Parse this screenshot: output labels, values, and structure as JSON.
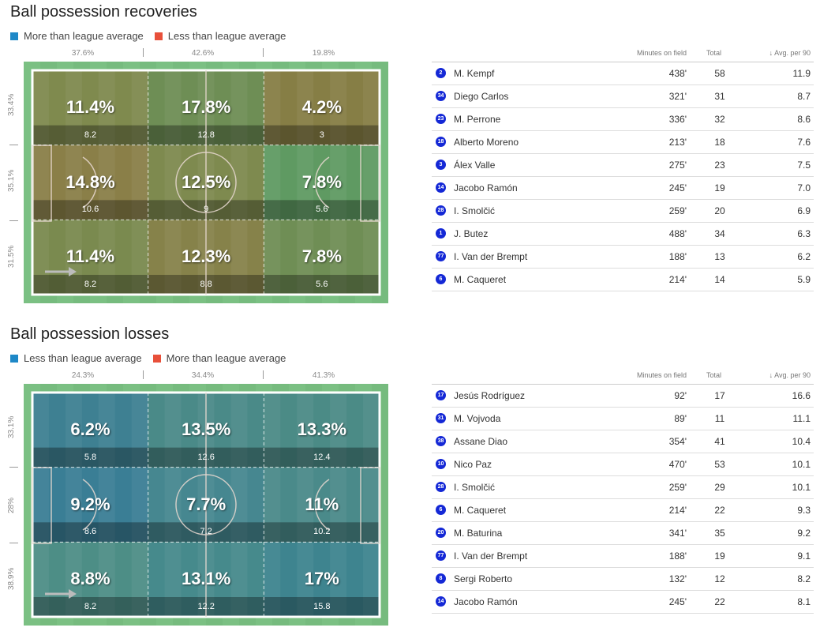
{
  "recoveries": {
    "title": "Ball possession recoveries",
    "legend": [
      {
        "label": "More than league average",
        "color": "#1e88c7"
      },
      {
        "label": "Less than league average",
        "color": "#e8503a"
      }
    ],
    "col_pcts": [
      "37.6%",
      "42.6%",
      "19.8%"
    ],
    "row_pcts": [
      "33.4%",
      "35.1%",
      "31.5%"
    ],
    "cells": [
      {
        "pct": "11.4%",
        "val": "8.2",
        "color": "#7f8a4e"
      },
      {
        "pct": "17.8%",
        "val": "12.8",
        "color": "#6e8e55"
      },
      {
        "pct": "4.2%",
        "val": "3",
        "color": "#867e45"
      },
      {
        "pct": "14.8%",
        "val": "10.6",
        "color": "#8a7f48"
      },
      {
        "pct": "12.5%",
        "val": "9",
        "color": "#7e8a4f"
      },
      {
        "pct": "7.8%",
        "val": "5.6",
        "color": "#5f9a62"
      },
      {
        "pct": "11.4%",
        "val": "8.2",
        "color": "#7a8a4f"
      },
      {
        "pct": "12.3%",
        "val": "8.8",
        "color": "#86824a"
      },
      {
        "pct": "7.8%",
        "val": "5.6",
        "color": "#6f8e55"
      }
    ],
    "headers": {
      "minutes": "Minutes on field",
      "total": "Total",
      "avg": "↓  Avg. per 90"
    },
    "players": [
      {
        "num": "2",
        "name": "M. Kempf",
        "minutes": "438'",
        "total": "58",
        "avg": "11.9"
      },
      {
        "num": "34",
        "name": "Diego Carlos",
        "minutes": "321'",
        "total": "31",
        "avg": "8.7"
      },
      {
        "num": "23",
        "name": "M. Perrone",
        "minutes": "336'",
        "total": "32",
        "avg": "8.6"
      },
      {
        "num": "18",
        "name": "Alberto Moreno",
        "minutes": "213'",
        "total": "18",
        "avg": "7.6"
      },
      {
        "num": "3",
        "name": "Álex Valle",
        "minutes": "275'",
        "total": "23",
        "avg": "7.5"
      },
      {
        "num": "14",
        "name": "Jacobo Ramón",
        "minutes": "245'",
        "total": "19",
        "avg": "7.0"
      },
      {
        "num": "28",
        "name": "I. Smolčić",
        "minutes": "259'",
        "total": "20",
        "avg": "6.9"
      },
      {
        "num": "1",
        "name": "J. Butez",
        "minutes": "488'",
        "total": "34",
        "avg": "6.3"
      },
      {
        "num": "77",
        "name": "I. Van der Brempt",
        "minutes": "188'",
        "total": "13",
        "avg": "6.2"
      },
      {
        "num": "6",
        "name": "M. Caqueret",
        "minutes": "214'",
        "total": "14",
        "avg": "5.9"
      }
    ]
  },
  "losses": {
    "title": "Ball possession losses",
    "legend": [
      {
        "label": "Less than league average",
        "color": "#1e88c7"
      },
      {
        "label": "More than league average",
        "color": "#e8503a"
      }
    ],
    "col_pcts": [
      "24.3%",
      "34.4%",
      "41.3%"
    ],
    "row_pcts": [
      "33.1%",
      "28%",
      "38.9%"
    ],
    "cells": [
      {
        "pct": "6.2%",
        "val": "5.8",
        "color": "#3e8092"
      },
      {
        "pct": "13.5%",
        "val": "12.6",
        "color": "#4a8a88"
      },
      {
        "pct": "13.3%",
        "val": "12.4",
        "color": "#4b8b86"
      },
      {
        "pct": "9.2%",
        "val": "8.6",
        "color": "#3a7e95"
      },
      {
        "pct": "7.7%",
        "val": "7.2",
        "color": "#468790"
      },
      {
        "pct": "11%",
        "val": "10.2",
        "color": "#4a8a8a"
      },
      {
        "pct": "8.8%",
        "val": "8.2",
        "color": "#4d8e86"
      },
      {
        "pct": "13.1%",
        "val": "12.2",
        "color": "#468a8c"
      },
      {
        "pct": "17%",
        "val": "15.8",
        "color": "#3e848f"
      }
    ],
    "headers": {
      "minutes": "Minutes on field",
      "total": "Total",
      "avg": "↓  Avg. per 90"
    },
    "players": [
      {
        "num": "17",
        "name": "Jesús Rodríguez",
        "minutes": "92'",
        "total": "17",
        "avg": "16.6"
      },
      {
        "num": "31",
        "name": "M. Vojvoda",
        "minutes": "89'",
        "total": "11",
        "avg": "11.1"
      },
      {
        "num": "38",
        "name": "Assane Diao",
        "minutes": "354'",
        "total": "41",
        "avg": "10.4"
      },
      {
        "num": "10",
        "name": "Nico Paz",
        "minutes": "470'",
        "total": "53",
        "avg": "10.1"
      },
      {
        "num": "28",
        "name": "I. Smolčić",
        "minutes": "259'",
        "total": "29",
        "avg": "10.1"
      },
      {
        "num": "6",
        "name": "M. Caqueret",
        "minutes": "214'",
        "total": "22",
        "avg": "9.3"
      },
      {
        "num": "20",
        "name": "M. Baturina",
        "minutes": "341'",
        "total": "35",
        "avg": "9.2"
      },
      {
        "num": "77",
        "name": "I. Van der Brempt",
        "minutes": "188'",
        "total": "19",
        "avg": "9.1"
      },
      {
        "num": "8",
        "name": "Sergi Roberto",
        "minutes": "132'",
        "total": "12",
        "avg": "8.2"
      },
      {
        "num": "14",
        "name": "Jacobo Ramón",
        "minutes": "245'",
        "total": "22",
        "avg": "8.1"
      }
    ]
  }
}
